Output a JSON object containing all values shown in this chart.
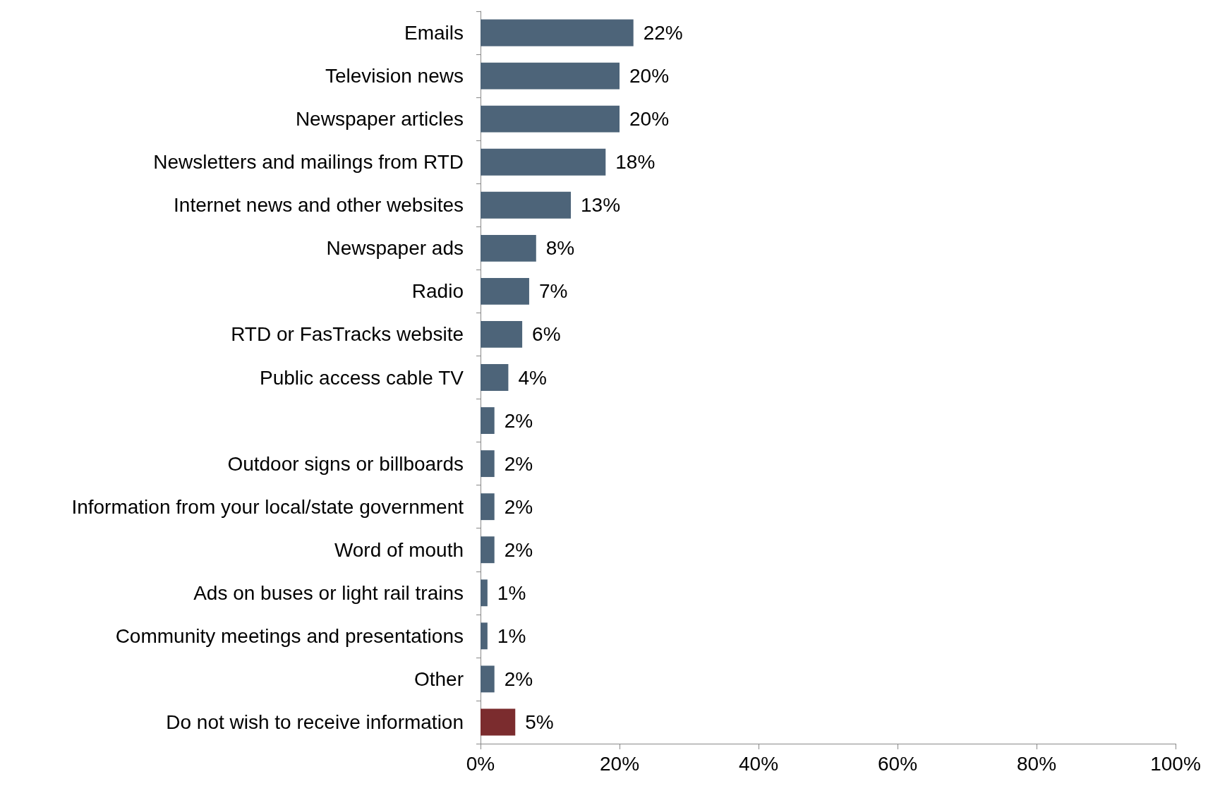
{
  "chart_data": {
    "type": "bar",
    "orientation": "horizontal",
    "categories": [
      "Emails",
      "Television news",
      "Newspaper articles",
      "Newsletters and mailings from RTD",
      "Internet news and other websites",
      "Newspaper ads",
      "Radio",
      "RTD or FasTracks website",
      "Public access cable TV",
      null,
      "Outdoor signs or billboards",
      "Information from your local/state government",
      "Word of mouth",
      "Ads on buses or light rail trains",
      "Community meetings and presentations",
      "Other",
      "Do not wish to receive information"
    ],
    "values": [
      22,
      20,
      20,
      18,
      13,
      8,
      7,
      6,
      4,
      2,
      2,
      2,
      2,
      1,
      1,
      2,
      5
    ],
    "value_labels": [
      "22%",
      "20%",
      "20%",
      "18%",
      "13%",
      "8%",
      "7%",
      "6%",
      "4%",
      "2%",
      "2%",
      "2%",
      "2%",
      "1%",
      "1%",
      "2%",
      "5%"
    ],
    "colors": [
      "#4d6479",
      "#4d6479",
      "#4d6479",
      "#4d6479",
      "#4d6479",
      "#4d6479",
      "#4d6479",
      "#4d6479",
      "#4d6479",
      "#4d6479",
      "#4d6479",
      "#4d6479",
      "#4d6479",
      "#4d6479",
      "#4d6479",
      "#4d6479",
      "#7b2c2e"
    ],
    "xlim": [
      0,
      100
    ],
    "xticks": [
      {
        "value": 0,
        "label": "0%"
      },
      {
        "value": 20,
        "label": "20%"
      },
      {
        "value": 40,
        "label": "40%"
      },
      {
        "value": 60,
        "label": "60%"
      },
      {
        "value": 80,
        "label": "80%"
      },
      {
        "value": 100,
        "label": "100%"
      }
    ],
    "grid": false
  }
}
